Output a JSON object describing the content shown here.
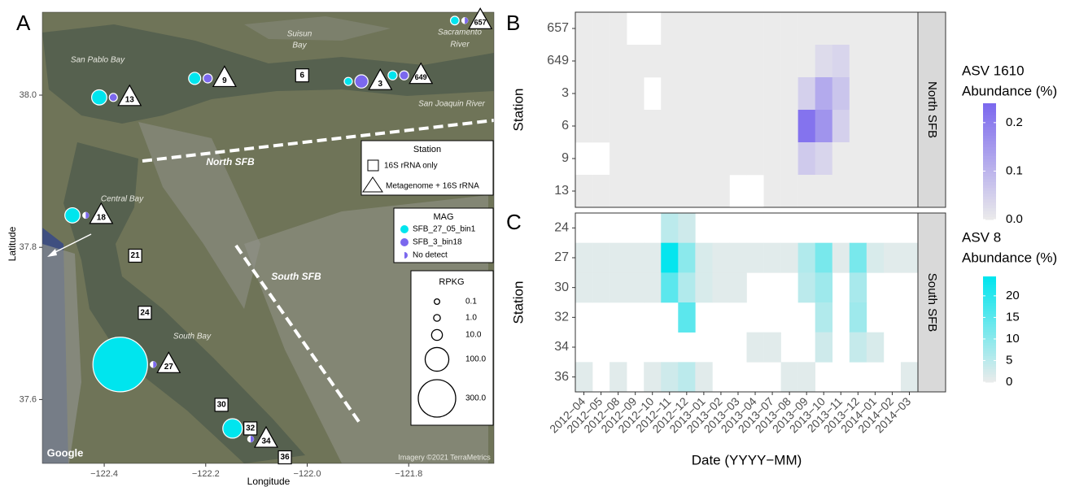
{
  "panel_labels": [
    "A",
    "B",
    "C"
  ],
  "map": {
    "x_label": "Longitude",
    "y_label": "Latitude",
    "xlim": [
      -122.522,
      -121.632
    ],
    "ylim": [
      37.516,
      38.109
    ],
    "xticks": [
      {
        "value": -122.4,
        "label": "−122.4"
      },
      {
        "value": -122.2,
        "label": "−122.2"
      },
      {
        "value": -122.0,
        "label": "−122.0"
      },
      {
        "value": -121.8,
        "label": "−121.8"
      }
    ],
    "yticks": [
      37.6,
      37.8,
      {
        "value": 38.0,
        "label": "38.0"
      }
    ],
    "annotations": [
      "San Pablo Bay",
      "Suisun",
      "Bay",
      "Sacramento",
      "River",
      "San Joaquin River",
      "Central Bay",
      "South Bay",
      "Google",
      "Imagery ©2021 TerraMetrics"
    ],
    "regions": [
      "North SFB",
      "South SFB"
    ],
    "station_legend": {
      "title": "Station",
      "entries": [
        "16S rRNA only",
        "Metagenome + 16S rRNA"
      ]
    },
    "mag_legend": {
      "title": "MAG",
      "entries": [
        {
          "name": "SFB_27_05_bin1",
          "color": "#00e5ee"
        },
        {
          "name": "SFB_3_bin18",
          "color": "#7b68ee"
        },
        {
          "name": "No detect",
          "color": "#7b68ee"
        }
      ]
    },
    "size_legend": {
      "title": "RPKG",
      "values": [
        0.1,
        {
          "value": 1,
          "label": "1.0"
        },
        {
          "value": 10,
          "label": "10.0"
        },
        {
          "value": 100,
          "label": "100.0"
        },
        {
          "value": 300,
          "label": "300.0"
        }
      ]
    },
    "stations": [
      {
        "label": "657",
        "lon": -121.659,
        "lat": 38.098,
        "shape": "triangle",
        "mags": [
          {
            "mag": 0,
            "rpkg": 4
          },
          {
            "mag": 2
          }
        ]
      },
      {
        "label": "649",
        "lon": -121.776,
        "lat": 38.026,
        "shape": "triangle",
        "mags": [
          {
            "mag": 0,
            "rpkg": 5
          },
          {
            "mag": 1,
            "rpkg": 5
          }
        ]
      },
      {
        "label": "3",
        "lon": -121.856,
        "lat": 38.018,
        "shape": "triangle",
        "mags": [
          {
            "mag": 0,
            "rpkg": 3
          },
          {
            "mag": 1,
            "rpkg": 20
          }
        ]
      },
      {
        "label": "6",
        "lon": -122.01,
        "lat": 38.026,
        "shape": "square",
        "mags": []
      },
      {
        "label": "9",
        "lon": -122.163,
        "lat": 38.022,
        "shape": "triangle",
        "mags": [
          {
            "mag": 0,
            "rpkg": 15
          },
          {
            "mag": 1,
            "rpkg": 5
          }
        ]
      },
      {
        "label": "13",
        "lon": -122.35,
        "lat": 37.997,
        "shape": "triangle",
        "mags": [
          {
            "mag": 0,
            "rpkg": 30
          },
          {
            "mag": 1,
            "rpkg": 3
          }
        ]
      },
      {
        "label": "18",
        "lon": -122.406,
        "lat": 37.842,
        "shape": "triangle",
        "mags": [
          {
            "mag": 0,
            "rpkg": 30
          },
          {
            "mag": 2
          }
        ]
      },
      {
        "label": "21",
        "lon": -122.339,
        "lat": 37.789,
        "shape": "square",
        "mags": []
      },
      {
        "label": "24",
        "lon": -122.32,
        "lat": 37.714,
        "shape": "square",
        "mags": []
      },
      {
        "label": "27",
        "lon": -122.273,
        "lat": 37.646,
        "shape": "triangle",
        "mags": [
          {
            "mag": 0,
            "rpkg": 700
          },
          {
            "mag": 2
          }
        ]
      },
      {
        "label": "30",
        "lon": -122.169,
        "lat": 37.593,
        "shape": "square",
        "mags": []
      },
      {
        "label": "32",
        "lon": -122.112,
        "lat": 37.562,
        "shape": "square",
        "mags": [
          {
            "mag": 0,
            "rpkg": 60
          }
        ]
      },
      {
        "label": "34",
        "lon": -122.081,
        "lat": 37.548,
        "shape": "triangle",
        "mags": [
          {
            "mag": 2
          }
        ]
      },
      {
        "label": "36",
        "lon": -122.044,
        "lat": 37.524,
        "shape": "square",
        "mags": []
      }
    ]
  },
  "chart_data": [
    {
      "type": "heatmap",
      "y_label": "Station",
      "strip": "North SFB",
      "legend_title": [
        "ASV 1610",
        "Abundance (%)"
      ],
      "color_low": "#ebebeb",
      "color_high": "#7b68ee",
      "zlim": [
        0,
        0.24
      ],
      "zticks": [
        {
          "value": 0,
          "label": "0.0"
        },
        0.1,
        0.2
      ],
      "rows": [
        "657",
        "649",
        "3",
        "6",
        "9",
        "13"
      ],
      "values": [
        [
          0,
          0,
          0,
          null,
          null,
          0,
          0,
          0,
          0,
          0,
          0,
          0,
          0,
          0,
          0,
          0,
          0,
          0,
          0,
          0
        ],
        [
          0,
          0,
          0,
          0,
          0,
          0,
          0,
          0,
          0,
          0,
          0,
          0,
          0,
          0,
          0.03,
          0.04,
          0,
          0,
          0,
          0
        ],
        [
          0,
          0,
          0,
          0,
          null,
          0,
          0,
          0,
          0,
          0,
          0,
          0,
          0,
          0.05,
          0.12,
          0.07,
          0,
          0,
          0,
          0
        ],
        [
          0,
          0,
          0,
          0,
          0,
          0,
          0,
          0,
          0,
          0,
          0,
          0,
          0,
          0.22,
          0.16,
          0.05,
          0,
          0,
          0,
          0
        ],
        [
          null,
          null,
          0,
          0,
          0,
          0,
          0,
          0,
          0,
          0,
          0,
          0,
          0,
          0.06,
          0.04,
          0,
          0,
          0,
          0,
          0
        ],
        [
          0,
          0,
          0,
          0,
          0,
          0,
          0,
          0,
          0,
          null,
          null,
          0,
          0,
          0,
          0,
          0,
          0,
          0,
          0,
          0
        ]
      ]
    },
    {
      "type": "heatmap",
      "y_label": "Station",
      "strip": "South SFB",
      "legend_title": [
        "ASV 8",
        "Abundance (%)"
      ],
      "x_label": "Date (YYYY−MM)",
      "categories": [
        "2012−04",
        "2012−05",
        "2012−08",
        "2012−09",
        "2012−10",
        "2012−11",
        "2012−12",
        "2013−01",
        "2013−02",
        "2013−03",
        "2013−04",
        "2013−07",
        "2013−08",
        "2013−09",
        "2013−10",
        "2013−11",
        "2013−12",
        "2014−01",
        "2014−02",
        "2014−03"
      ],
      "color_low": "#ebebeb",
      "color_high": "#00e5ee",
      "zlim": [
        0,
        24.5
      ],
      "zticks": [
        0,
        5,
        10,
        15,
        20
      ],
      "rows": [
        "24",
        "27",
        "30",
        "32",
        "34",
        "36"
      ],
      "values": [
        [
          null,
          null,
          null,
          null,
          null,
          5,
          3,
          null,
          null,
          null,
          null,
          null,
          null,
          null,
          null,
          null,
          null,
          null,
          null,
          null
        ],
        [
          1,
          1,
          1,
          1,
          1,
          24,
          10,
          2,
          1,
          1,
          1,
          1,
          1,
          6,
          12,
          1,
          12,
          2,
          1,
          1
        ],
        [
          1,
          1,
          1,
          1,
          1,
          15,
          6,
          2,
          1,
          1,
          null,
          null,
          null,
          5,
          8,
          null,
          7,
          null,
          null,
          null
        ],
        [
          null,
          null,
          null,
          null,
          null,
          null,
          15,
          null,
          null,
          null,
          null,
          null,
          null,
          null,
          6,
          null,
          8,
          null,
          null,
          null
        ],
        [
          null,
          null,
          null,
          null,
          null,
          null,
          null,
          null,
          null,
          null,
          1,
          1,
          null,
          null,
          3,
          null,
          4,
          2,
          null,
          null
        ],
        [
          1,
          null,
          1,
          null,
          1,
          3,
          5,
          1,
          null,
          null,
          null,
          null,
          1,
          1,
          null,
          null,
          null,
          null,
          null,
          1
        ]
      ]
    }
  ]
}
